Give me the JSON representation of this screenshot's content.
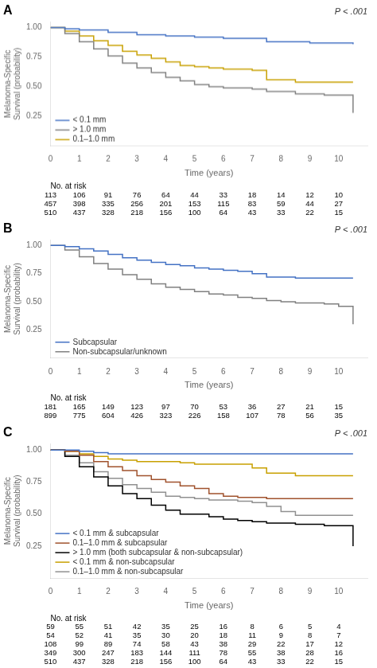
{
  "chart_data": [
    {
      "type": "line",
      "title": "A",
      "annotation": "P < .001",
      "xlabel": "Time (years)",
      "ylabel": "Melanoma-Specific\nSurvival (probability)",
      "line_style": "step",
      "grid": false,
      "legend": "lower left",
      "xlim": [
        0,
        11
      ],
      "ylim": [
        0,
        1.05
      ],
      "xticks": [
        0,
        1,
        2,
        3,
        4,
        5,
        6,
        7,
        8,
        9,
        10
      ],
      "yticks": [
        0.25,
        {
          "value": 0.5,
          "label": "0.50"
        },
        0.75,
        {
          "value": 1.0,
          "label": "1.00"
        }
      ],
      "series": [
        {
          "name": "< 0.1 mm",
          "color": "#4472C4",
          "x": [
            0,
            0.5,
            1,
            2,
            3,
            4,
            5,
            6,
            7,
            7.5,
            8,
            9,
            10,
            10.5
          ],
          "values": [
            1.0,
            0.99,
            0.98,
            0.96,
            0.94,
            0.93,
            0.92,
            0.91,
            0.91,
            0.88,
            0.88,
            0.87,
            0.87,
            0.86
          ]
        },
        {
          "name": "> 1.0 mm",
          "color": "#808080",
          "x": [
            0,
            0.5,
            1,
            1.5,
            2,
            2.5,
            3,
            3.5,
            4,
            4.5,
            5,
            5.5,
            6,
            6.5,
            7,
            7.5,
            8,
            8.5,
            9,
            9.5,
            10,
            10.5
          ],
          "values": [
            1.0,
            0.95,
            0.88,
            0.82,
            0.76,
            0.7,
            0.66,
            0.62,
            0.58,
            0.55,
            0.52,
            0.5,
            0.49,
            0.49,
            0.48,
            0.46,
            0.46,
            0.44,
            0.44,
            0.43,
            0.43,
            0.28
          ]
        },
        {
          "name": "0.1–1.0 mm",
          "color": "#C8A000",
          "x": [
            0,
            0.5,
            1,
            1.5,
            2,
            2.5,
            3,
            3.5,
            4,
            4.5,
            5,
            5.5,
            6,
            6.5,
            7,
            7.5,
            8,
            8.5,
            9,
            9.5,
            10,
            10.5
          ],
          "values": [
            1.0,
            0.97,
            0.93,
            0.89,
            0.85,
            0.8,
            0.77,
            0.74,
            0.71,
            0.68,
            0.67,
            0.66,
            0.65,
            0.65,
            0.64,
            0.56,
            0.56,
            0.54,
            0.54,
            0.54,
            0.54,
            0.54
          ]
        }
      ],
      "at_risk": {
        "label": "No. at risk",
        "x": [
          0,
          1,
          2,
          3,
          4,
          5,
          6,
          7,
          8,
          9,
          10
        ],
        "rows": [
          [
            113,
            106,
            91,
            76,
            64,
            44,
            33,
            18,
            14,
            12,
            10
          ],
          [
            457,
            398,
            335,
            256,
            201,
            153,
            115,
            83,
            59,
            44,
            27
          ],
          [
            510,
            437,
            328,
            218,
            156,
            100,
            64,
            43,
            33,
            22,
            15
          ]
        ]
      }
    },
    {
      "type": "line",
      "title": "B",
      "annotation": "P < .001",
      "xlabel": "Time (years)",
      "ylabel": "Melanoma-Specific\nSurvival (probability)",
      "line_style": "step",
      "grid": false,
      "legend": "lower left",
      "xlim": [
        0,
        11
      ],
      "ylim": [
        0,
        1.05
      ],
      "xticks": [
        0,
        1,
        2,
        3,
        4,
        5,
        6,
        7,
        8,
        9,
        10
      ],
      "yticks": [
        0.25,
        {
          "value": 0.5,
          "label": "0.50"
        },
        0.75,
        {
          "value": 1.0,
          "label": "1.00"
        }
      ],
      "series": [
        {
          "name": "Subcapsular",
          "color": "#4472C4",
          "x": [
            0,
            0.5,
            1,
            1.5,
            2,
            2.5,
            3,
            3.5,
            4,
            4.5,
            5,
            5.5,
            6,
            6.5,
            7,
            7.5,
            8,
            8.5,
            9,
            9.5,
            10,
            10.5
          ],
          "values": [
            1.0,
            0.99,
            0.97,
            0.95,
            0.92,
            0.89,
            0.87,
            0.85,
            0.83,
            0.82,
            0.8,
            0.79,
            0.78,
            0.77,
            0.75,
            0.72,
            0.72,
            0.71,
            0.71,
            0.71,
            0.71,
            0.71
          ]
        },
        {
          "name": "Non-subcapsular/unknown",
          "color": "#808080",
          "x": [
            0,
            0.5,
            1,
            1.5,
            2,
            2.5,
            3,
            3.5,
            4,
            4.5,
            5,
            5.5,
            6,
            6.5,
            7,
            7.5,
            8,
            8.5,
            9,
            9.5,
            10,
            10.5
          ],
          "values": [
            1.0,
            0.96,
            0.9,
            0.84,
            0.79,
            0.74,
            0.7,
            0.66,
            0.63,
            0.61,
            0.59,
            0.57,
            0.56,
            0.54,
            0.53,
            0.51,
            0.5,
            0.49,
            0.49,
            0.48,
            0.46,
            0.3
          ]
        }
      ],
      "at_risk": {
        "label": "No. at risk",
        "x": [
          0,
          1,
          2,
          3,
          4,
          5,
          6,
          7,
          8,
          9,
          10
        ],
        "rows": [
          [
            181,
            165,
            149,
            123,
            97,
            70,
            53,
            36,
            27,
            21,
            15
          ],
          [
            899,
            775,
            604,
            426,
            323,
            226,
            158,
            107,
            78,
            56,
            35
          ]
        ]
      }
    },
    {
      "type": "line",
      "title": "C",
      "annotation": "P < .001",
      "xlabel": "Time (years)",
      "ylabel": "Melanoma-Specific\nSurvival (probability)",
      "line_style": "step",
      "grid": false,
      "legend": "lower left",
      "xlim": [
        0,
        11
      ],
      "ylim": [
        0,
        1.05
      ],
      "xticks": [
        0,
        1,
        2,
        3,
        4,
        5,
        6,
        7,
        8,
        9,
        10
      ],
      "yticks": [
        0.25,
        {
          "value": 0.5,
          "label": "0.50"
        },
        0.75,
        {
          "value": 1.0,
          "label": "1.00"
        }
      ],
      "series": [
        {
          "name": "< 0.1 mm & subcapsular",
          "color": "#4472C4",
          "x": [
            0,
            0.5,
            1,
            1.5,
            2,
            2.5,
            3,
            3.5,
            4,
            4.5,
            5,
            5.5,
            6,
            6.5,
            7,
            7.5,
            8,
            8.5,
            9,
            9.5,
            10,
            10.5
          ],
          "values": [
            1.0,
            1.0,
            0.99,
            0.98,
            0.97,
            0.97,
            0.97,
            0.97,
            0.97,
            0.97,
            0.97,
            0.97,
            0.97,
            0.97,
            0.97,
            0.97,
            0.97,
            0.97,
            0.97,
            0.97,
            0.97,
            0.97
          ]
        },
        {
          "name": "0.1–1.0 mm & subcapsular",
          "color": "#A0522D",
          "x": [
            0,
            0.5,
            1,
            1.5,
            2,
            2.5,
            3,
            3.5,
            4,
            4.5,
            5,
            5.5,
            6,
            6.5,
            7,
            7.5,
            8,
            8.5,
            9,
            9.5,
            10,
            10.5
          ],
          "values": [
            1.0,
            0.99,
            0.96,
            0.91,
            0.87,
            0.84,
            0.8,
            0.77,
            0.75,
            0.72,
            0.7,
            0.66,
            0.64,
            0.63,
            0.63,
            0.62,
            0.62,
            0.62,
            0.62,
            0.62,
            0.62,
            0.62
          ]
        },
        {
          "name": "> 1.0 mm (both subcapsular & non-subcapsular)",
          "color": "#000000",
          "x": [
            0,
            0.5,
            1,
            1.5,
            2,
            2.5,
            3,
            3.5,
            4,
            4.5,
            5,
            5.5,
            6,
            6.5,
            7,
            7.5,
            8,
            8.5,
            9,
            9.5,
            10,
            10.5
          ],
          "values": [
            1.0,
            0.95,
            0.87,
            0.79,
            0.72,
            0.66,
            0.62,
            0.57,
            0.53,
            0.5,
            0.5,
            0.48,
            0.46,
            0.45,
            0.44,
            0.43,
            0.43,
            0.42,
            0.42,
            0.41,
            0.41,
            0.25
          ]
        },
        {
          "name": "< 0.1 mm & non-subcapsular",
          "color": "#C8A000",
          "x": [
            0,
            0.5,
            1,
            1.5,
            2,
            2.5,
            3,
            3.5,
            4,
            4.5,
            5,
            5.5,
            6,
            6.5,
            7,
            7.5,
            8,
            8.5,
            9,
            9.5,
            10,
            10.5
          ],
          "values": [
            1.0,
            0.99,
            0.97,
            0.95,
            0.93,
            0.92,
            0.91,
            0.91,
            0.91,
            0.9,
            0.89,
            0.89,
            0.89,
            0.89,
            0.86,
            0.82,
            0.82,
            0.8,
            0.8,
            0.8,
            0.8,
            0.8
          ]
        },
        {
          "name": "0.1–1.0 mm & non-subcapsular",
          "color": "#909090",
          "x": [
            0,
            0.5,
            1,
            1.5,
            2,
            2.5,
            3,
            3.5,
            4,
            4.5,
            5,
            5.5,
            6,
            6.5,
            7,
            7.5,
            8,
            8.5,
            9,
            9.5,
            10,
            10.5
          ],
          "values": [
            1.0,
            0.96,
            0.9,
            0.83,
            0.78,
            0.73,
            0.7,
            0.67,
            0.64,
            0.63,
            0.62,
            0.61,
            0.61,
            0.6,
            0.59,
            0.56,
            0.52,
            0.49,
            0.49,
            0.49,
            0.49,
            0.49
          ]
        }
      ],
      "at_risk": {
        "label": "No. at risk",
        "x": [
          0,
          1,
          2,
          3,
          4,
          5,
          6,
          7,
          8,
          9,
          10
        ],
        "rows": [
          [
            59,
            55,
            51,
            42,
            35,
            25,
            16,
            8,
            6,
            5,
            4
          ],
          [
            54,
            52,
            41,
            35,
            30,
            20,
            18,
            11,
            9,
            8,
            7
          ],
          [
            108,
            99,
            89,
            74,
            58,
            43,
            38,
            29,
            22,
            17,
            12
          ],
          [
            349,
            300,
            247,
            183,
            144,
            111,
            78,
            55,
            38,
            28,
            16
          ],
          [
            510,
            437,
            328,
            218,
            156,
            100,
            64,
            43,
            33,
            22,
            15
          ]
        ]
      }
    }
  ]
}
